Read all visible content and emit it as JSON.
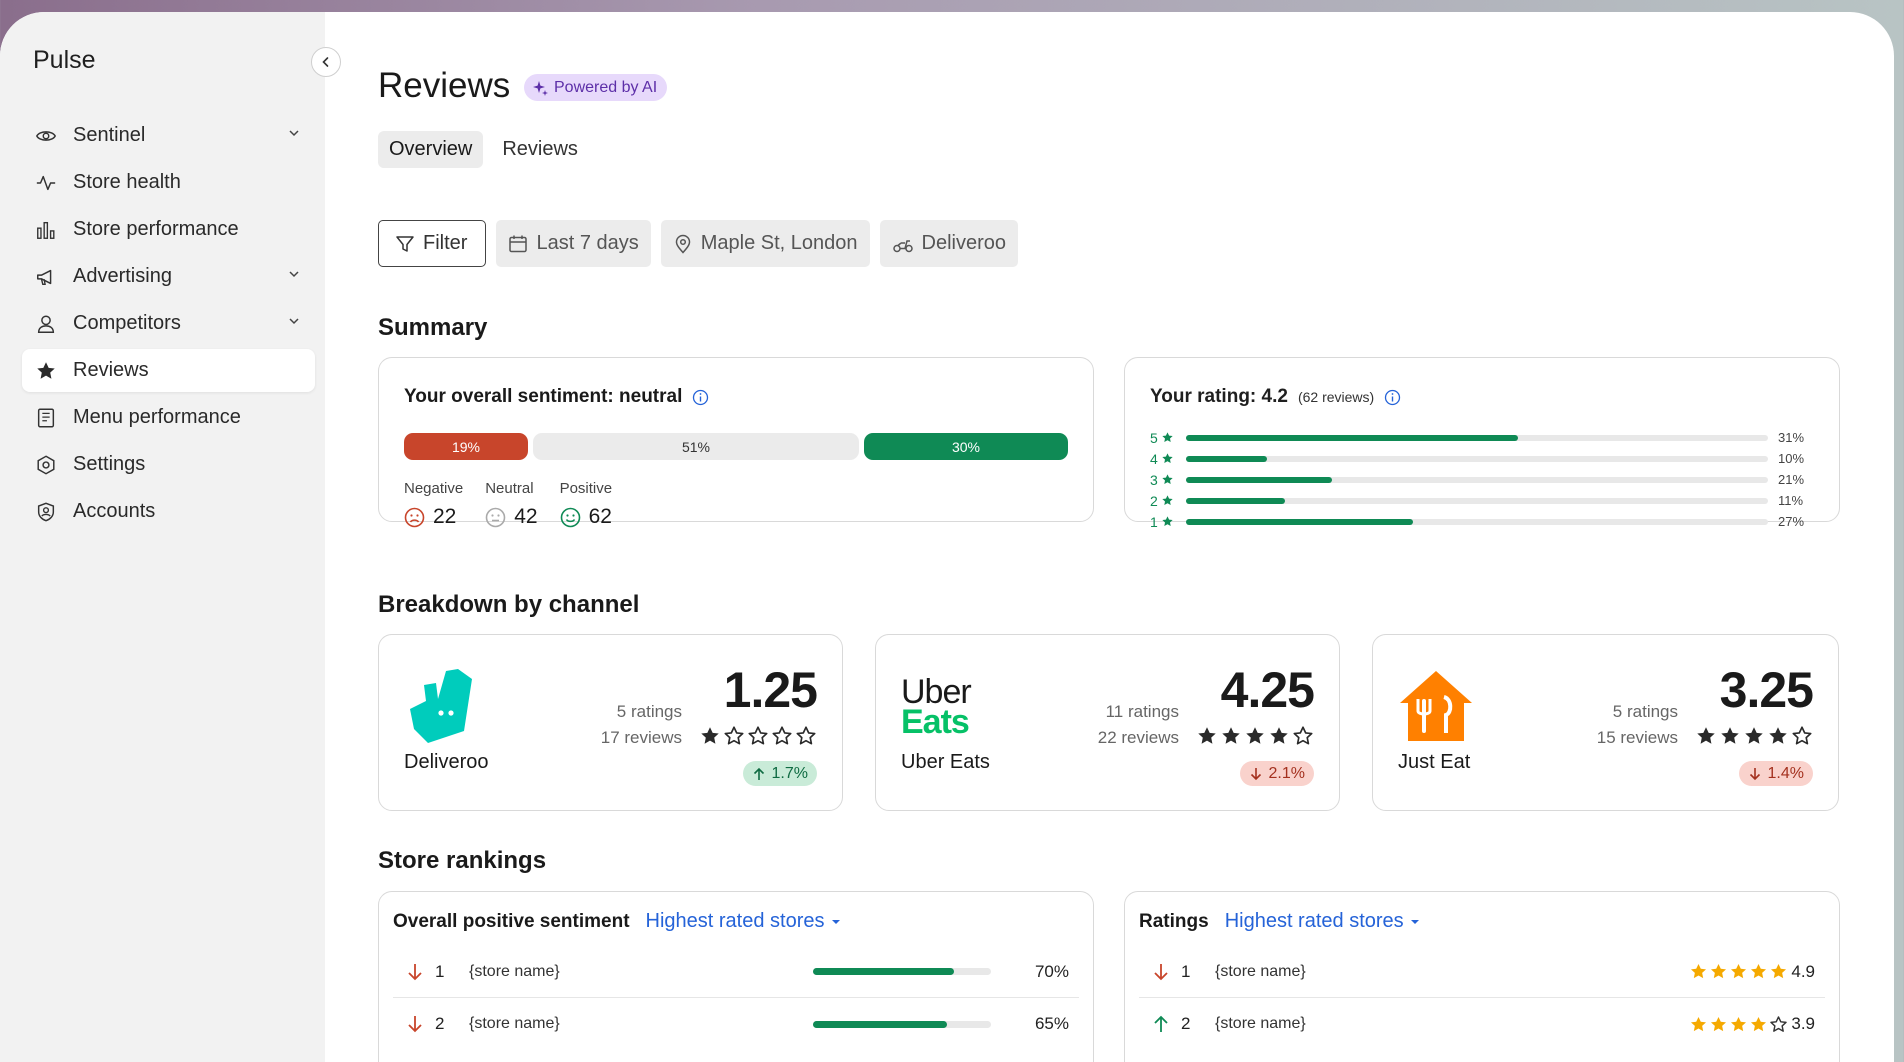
{
  "sidebar": {
    "brand": "Pulse",
    "items": [
      {
        "label": "Sentinel",
        "icon": "eye-icon",
        "chevron": true
      },
      {
        "label": "Store health",
        "icon": "pulse-icon",
        "chevron": false
      },
      {
        "label": "Store performance",
        "icon": "bar-chart-icon",
        "chevron": false
      },
      {
        "label": "Advertising",
        "icon": "megaphone-icon",
        "chevron": true
      },
      {
        "label": "Competitors",
        "icon": "competitors-icon",
        "chevron": true
      },
      {
        "label": "Reviews",
        "icon": "star-icon",
        "chevron": false,
        "active": true
      },
      {
        "label": "Menu performance",
        "icon": "menu-icon",
        "chevron": false
      },
      {
        "label": "Settings",
        "icon": "settings-icon",
        "chevron": false
      },
      {
        "label": "Accounts",
        "icon": "account-icon",
        "chevron": false
      }
    ]
  },
  "header": {
    "title": "Reviews",
    "badge": "Powered by AI",
    "tabs": [
      "Overview",
      "Reviews"
    ]
  },
  "filters": {
    "filter": "Filter",
    "date": "Last 7 days",
    "location": "Maple St, London",
    "channel": "Deliveroo"
  },
  "summary": {
    "section_title": "Summary",
    "sentiment": {
      "title": "Your overall sentiment: neutral",
      "negative_pct": "19%",
      "neutral_pct": "51%",
      "positive_pct": "30%",
      "negative_label": "Negative",
      "neutral_label": "Neutral",
      "positive_label": "Positive",
      "negative_count": "22",
      "neutral_count": "42",
      "positive_count": "62",
      "colors": {
        "negative": "#c8452b",
        "neutral": "#ebebeb",
        "positive": "#0f8a55"
      }
    },
    "rating": {
      "title": "Your rating: 4.2",
      "reviews": "(62 reviews)",
      "rows": [
        {
          "star": "5",
          "pct": "31%",
          "fill": 0.57
        },
        {
          "star": "4",
          "pct": "10%",
          "fill": 0.14
        },
        {
          "star": "3",
          "pct": "21%",
          "fill": 0.25
        },
        {
          "star": "2",
          "pct": "11%",
          "fill": 0.17
        },
        {
          "star": "1",
          "pct": "27%",
          "fill": 0.39
        }
      ]
    }
  },
  "breakdown": {
    "section_title": "Breakdown by channel",
    "channels": [
      {
        "name": "Deliveroo",
        "ratings": "5 ratings",
        "reviews": "17 reviews",
        "score": "1.25",
        "stars": 1,
        "change": "1.7%",
        "direction": "up",
        "logo_color": "#00ccbc"
      },
      {
        "name": "Uber Eats",
        "ratings": "11 ratings",
        "reviews": "22 reviews",
        "score": "4.25",
        "stars": 4,
        "change": "2.1%",
        "direction": "down",
        "logo_text_1": "Uber",
        "logo_text_2": "Eats",
        "logo_color": "#06c167"
      },
      {
        "name": "Just Eat",
        "ratings": "5 ratings",
        "reviews": "15 reviews",
        "score": "3.25",
        "stars": 4,
        "change": "1.4%",
        "direction": "down",
        "logo_color": "#ff8000"
      }
    ]
  },
  "rankings": {
    "section_title": "Store rankings",
    "sentiment_card": {
      "title": "Overall positive sentiment",
      "dropdown": "Highest rated stores",
      "rows": [
        {
          "rank": "1",
          "name": "{store name}",
          "pct": "70%",
          "fill": 0.79,
          "direction": "down"
        },
        {
          "rank": "2",
          "name": "{store name}",
          "pct": "65%",
          "fill": 0.75,
          "direction": "down"
        }
      ]
    },
    "ratings_card": {
      "title": "Ratings",
      "dropdown": "Highest rated stores",
      "rows": [
        {
          "rank": "1",
          "name": "{store name}",
          "score": "4.9",
          "stars": 5,
          "direction": "down"
        },
        {
          "rank": "2",
          "name": "{store name}",
          "score": "3.9",
          "stars": 4,
          "direction": "up"
        }
      ]
    }
  }
}
